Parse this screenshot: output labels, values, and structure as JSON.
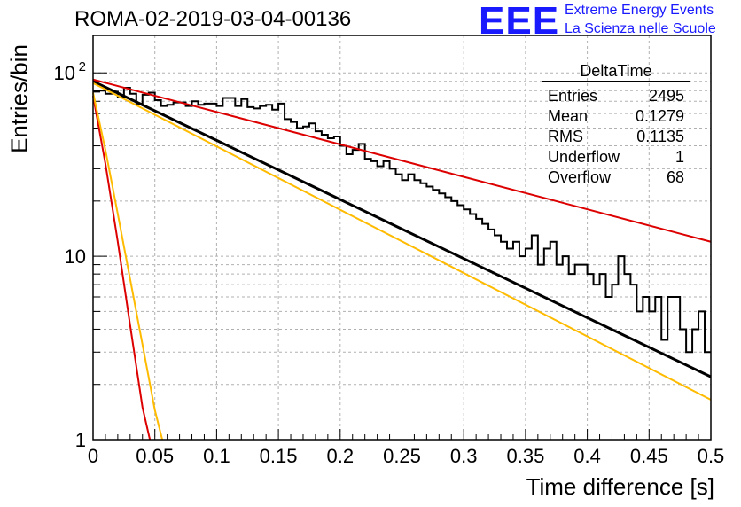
{
  "header": {
    "title": "ROMA-02-2019-03-04-00136",
    "logo_text": "EEE",
    "logo_line1": "Extreme Energy Events",
    "logo_line2": "La Scienza nelle Scuole"
  },
  "stats": {
    "name": "DeltaTime",
    "rows": [
      {
        "label": "Entries",
        "value": "2495"
      },
      {
        "label": "Mean",
        "value": "0.1279"
      },
      {
        "label": "RMS",
        "value": "0.1135"
      },
      {
        "label": "Underflow",
        "value": "1"
      },
      {
        "label": "Overflow",
        "value": "68"
      }
    ]
  },
  "colors": {
    "histogram": "#000000",
    "fit": "#000000",
    "red_curve": "#dd0000",
    "yellow_curve": "#ffbb00",
    "grid": "#b0b0b0"
  },
  "chart_data": {
    "type": "line",
    "xlabel": "Time difference [s]",
    "ylabel": "Entries/bin",
    "xlim": [
      0,
      0.5
    ],
    "ylim": [
      1,
      160
    ],
    "y_scale": "log",
    "grid": true,
    "x_ticks": [
      "0",
      "0.05",
      "0.1",
      "0.15",
      "0.2",
      "0.25",
      "0.3",
      "0.35",
      "0.4",
      "0.45",
      "0.5"
    ],
    "y_ticks": [
      {
        "value": 1,
        "label": "1"
      },
      {
        "value": 10,
        "label": "10"
      },
      {
        "value": 100,
        "label": "10",
        "exp": "2"
      }
    ],
    "histogram": {
      "bin_width": 0.005,
      "bin_start": 0,
      "values": [
        79,
        80,
        77,
        79,
        74,
        83,
        77,
        68,
        76,
        78,
        71,
        66,
        67,
        69,
        69,
        66,
        70,
        67,
        68,
        68,
        66,
        73,
        73,
        66,
        72,
        65,
        64,
        66,
        67,
        63,
        68,
        56,
        54,
        50,
        51,
        53,
        48,
        46,
        44,
        45,
        40,
        36,
        38,
        41,
        34,
        33,
        31,
        33,
        30,
        28,
        26,
        28,
        26,
        25,
        24,
        23,
        22,
        21,
        20,
        19,
        18,
        17,
        16,
        15,
        14,
        13,
        12,
        11,
        12,
        10,
        11,
        13,
        9,
        11,
        12,
        9,
        10,
        8,
        9,
        9,
        8,
        7,
        8,
        6,
        7,
        10,
        8,
        7,
        5,
        6,
        5,
        6,
        3.5,
        6,
        6,
        4,
        3,
        4,
        5,
        3
      ]
    },
    "series": [
      {
        "key": "fit_black",
        "x": [
          0.0,
          0.5
        ],
        "y": [
          90,
          2.2
        ]
      },
      {
        "key": "slow_red",
        "x": [
          0.0,
          0.5
        ],
        "y": [
          92,
          12
        ]
      },
      {
        "key": "slow_yellow",
        "x": [
          0.0,
          0.5
        ],
        "y": [
          88,
          1.65
        ]
      },
      {
        "key": "fast_red",
        "x": [
          0.0,
          0.01,
          0.02,
          0.03,
          0.04,
          0.046
        ],
        "y": [
          75,
          32,
          12,
          4.2,
          1.5,
          1.0
        ]
      },
      {
        "key": "fast_yellow",
        "x": [
          0.0,
          0.01,
          0.02,
          0.03,
          0.04,
          0.05,
          0.056
        ],
        "y": [
          78,
          38,
          17,
          7.5,
          3.3,
          1.45,
          1.0
        ]
      }
    ]
  }
}
